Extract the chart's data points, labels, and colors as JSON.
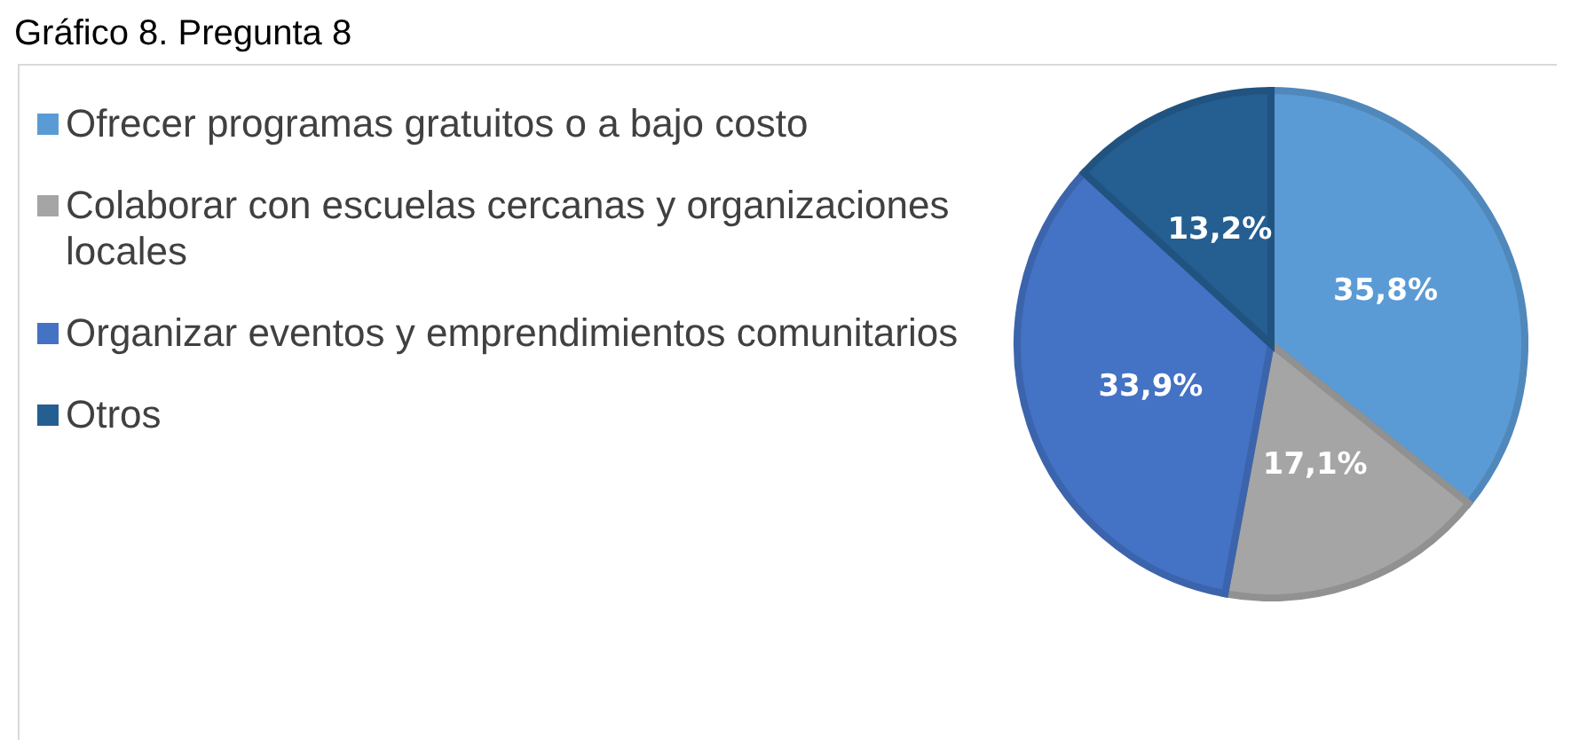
{
  "chart_data": {
    "type": "pie",
    "title": "Gráfico 8. Pregunta 8",
    "categories": [
      "Ofrecer programas gratuitos o a bajo costo",
      "Colaborar con escuelas cercanas y organizaciones locales",
      "Organizar eventos y emprendimientos comunitarios",
      "Otros"
    ],
    "values": [
      35.8,
      17.1,
      33.9,
      13.2
    ],
    "colors": [
      "#5b9bd5",
      "#a5a5a5",
      "#4472c4",
      "#255e91"
    ],
    "value_labels": [
      "35,8%",
      "17,1%",
      "33,9%",
      "13,2%"
    ],
    "legend": "left"
  }
}
